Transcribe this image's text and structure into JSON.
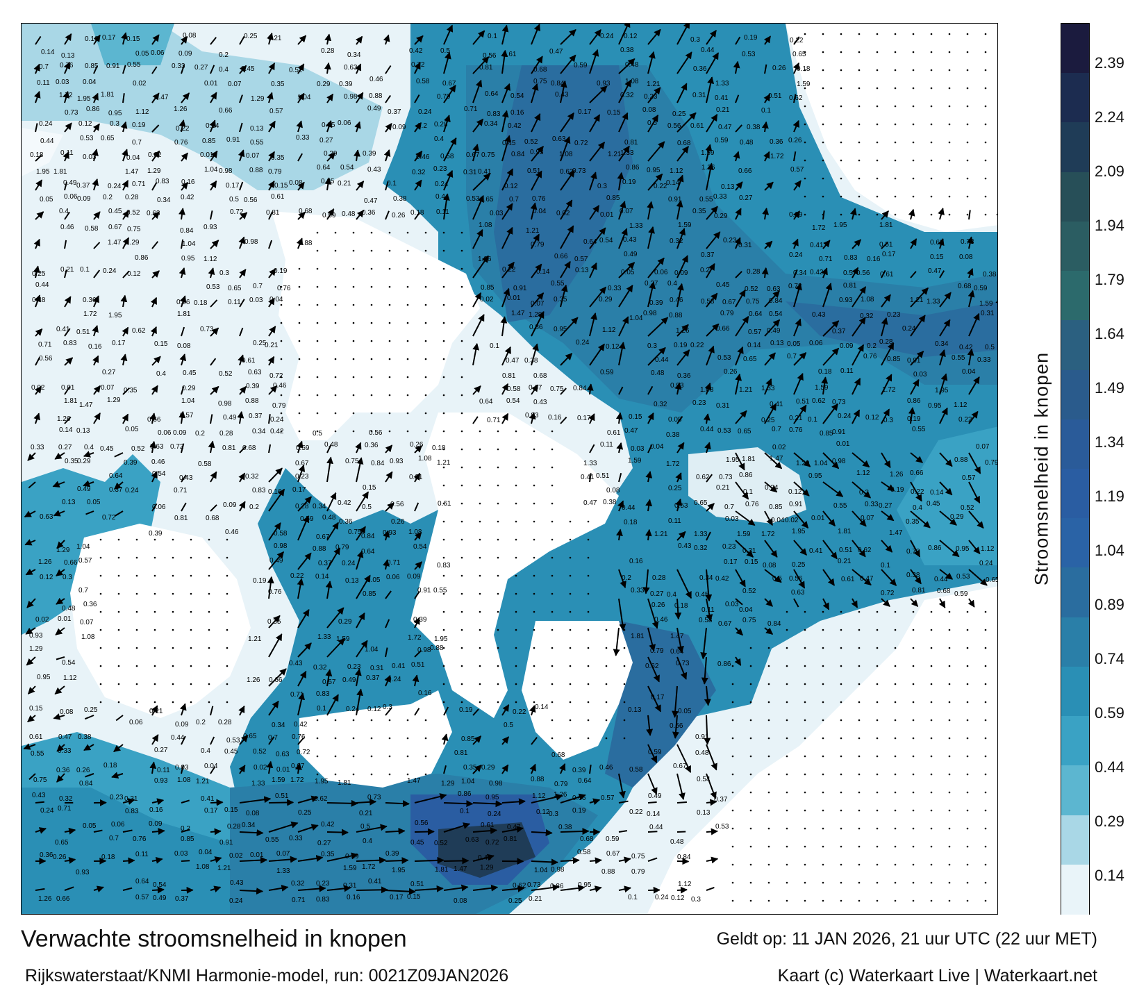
{
  "map": {
    "title": "Verwachte stroomsnelheid in knopen",
    "valid_time": "Geldt op: 11 JAN 2026, 21 uur UTC (22 uur MET)",
    "model_run": "Rijkswaterstaat/KNMI Harmonie-model, run: 0021Z09JAN2026",
    "credit": "Kaart (c) Waterkaart Live | Waterkaart.net",
    "sample_values": [
      "0.16",
      "0.17",
      "0.15",
      "0.08",
      "0.25",
      "0.21",
      "0.1",
      "0.24",
      "0.12",
      "0.3",
      "0.19",
      "0.22",
      "0.14",
      "0.13",
      "0.05",
      "0.06",
      "0.09",
      "0.2",
      "0.28",
      "0.34",
      "0.42",
      "0.5",
      "0.56",
      "0.61",
      "0.47",
      "0.38",
      "0.44",
      "0.53",
      "0.65",
      "0.7",
      "0.76",
      "0.85",
      "0.91",
      "0.55",
      "0.33",
      "0.27",
      "0.4",
      "0.45",
      "0.52",
      "0.63",
      "0.72",
      "0.81",
      "0.68",
      "0.59",
      "0.48",
      "0.36",
      "0.26",
      "0.18",
      "0.11",
      "0.03",
      "0.04",
      "0.02",
      "0.01",
      "0.07",
      "0.35",
      "0.29",
      "0.39",
      "0.46",
      "0.58",
      "0.67",
      "0.75",
      "0.84",
      "0.93",
      "1.08",
      "1.21",
      "1.33",
      "1.59",
      "1.72",
      "1.95",
      "1.81",
      "1.47",
      "1.29",
      "1.04",
      "0.98",
      "0.88",
      "0.79",
      "0.64",
      "0.54",
      "0.43",
      "0.32",
      "0.23",
      "0.31",
      "0.41",
      "0.51",
      "0.62",
      "0.73",
      "0.86",
      "0.95",
      "1.12",
      "1.26",
      "0.66",
      "0.57",
      "0.49",
      "0.37",
      "0.24",
      "0.71",
      "0.83"
    ]
  },
  "colorbar": {
    "label": "Stroomsnelheid in knopen",
    "ticks": [
      "2.39",
      "2.24",
      "2.09",
      "1.94",
      "1.79",
      "1.64",
      "1.49",
      "1.34",
      "1.19",
      "1.04",
      "0.89",
      "0.74",
      "0.59",
      "0.44",
      "0.29",
      "0.14"
    ],
    "colors": [
      "#1b1b3e",
      "#1c2c50",
      "#1f3c57",
      "#274f58",
      "#2b5d62",
      "#2c6a6c",
      "#2b6080",
      "#2a5b8c",
      "#2a5b99",
      "#2a5da2",
      "#2a63a6",
      "#2a6d9f",
      "#2a7fa8",
      "#2a8fb5",
      "#3aa2c4",
      "#5cb6d0",
      "#a9d7e6",
      "#e9f4f9"
    ]
  }
}
